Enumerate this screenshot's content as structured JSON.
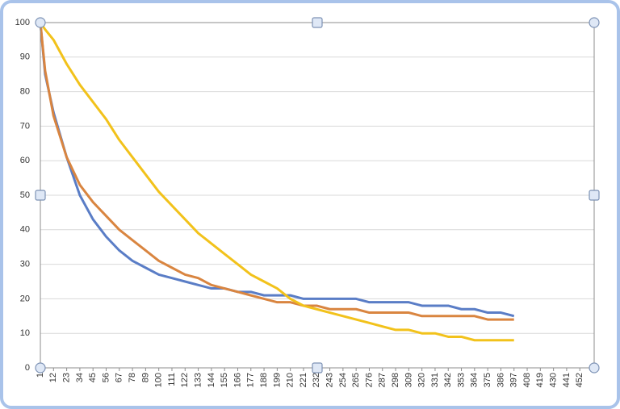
{
  "chart_data": {
    "type": "line",
    "x": [
      1,
      5,
      12,
      23,
      34,
      45,
      56,
      67,
      78,
      89,
      100,
      111,
      122,
      133,
      144,
      155,
      166,
      177,
      188,
      199,
      210,
      221,
      232,
      243,
      254,
      265,
      276,
      287,
      298,
      309,
      320,
      331,
      342,
      353,
      364,
      375,
      386,
      397
    ],
    "series": [
      {
        "color": "#5a7dc6",
        "values": [
          100,
          85,
          74,
          61,
          50,
          43,
          38,
          34,
          31,
          29,
          27,
          26,
          25,
          24,
          23,
          23,
          22,
          22,
          21,
          21,
          21,
          20,
          20,
          20,
          20,
          20,
          19,
          19,
          19,
          19,
          18,
          18,
          18,
          17,
          17,
          16,
          16,
          15
        ]
      },
      {
        "color": "#d98540",
        "values": [
          100,
          86,
          73,
          61,
          53,
          48,
          44,
          40,
          37,
          34,
          31,
          29,
          27,
          26,
          24,
          23,
          22,
          21,
          20,
          19,
          19,
          18,
          18,
          17,
          17,
          17,
          16,
          16,
          16,
          16,
          15,
          15,
          15,
          15,
          15,
          14,
          14,
          14
        ]
      },
      {
        "color": "#f2c21b",
        "values": [
          100,
          98,
          95,
          88,
          82,
          77,
          72,
          66,
          61,
          56,
          51,
          47,
          43,
          39,
          36,
          33,
          30,
          27,
          25,
          23,
          20,
          18,
          17,
          16,
          15,
          14,
          13,
          12,
          11,
          11,
          10,
          10,
          9,
          9,
          8,
          8,
          8,
          8
        ]
      }
    ],
    "xlim": [
      1,
      464
    ],
    "xticks": [
      1,
      12,
      23,
      34,
      45,
      56,
      67,
      78,
      89,
      100,
      111,
      122,
      133,
      144,
      155,
      166,
      177,
      188,
      199,
      210,
      221,
      232,
      243,
      254,
      265,
      276,
      287,
      298,
      309,
      320,
      331,
      342,
      353,
      364,
      375,
      386,
      397,
      408,
      419,
      430,
      441,
      452
    ],
    "ylim": [
      0,
      100
    ],
    "yticks": [
      0,
      10,
      20,
      30,
      40,
      50,
      60,
      70,
      80,
      90,
      100
    ],
    "grid": true
  }
}
